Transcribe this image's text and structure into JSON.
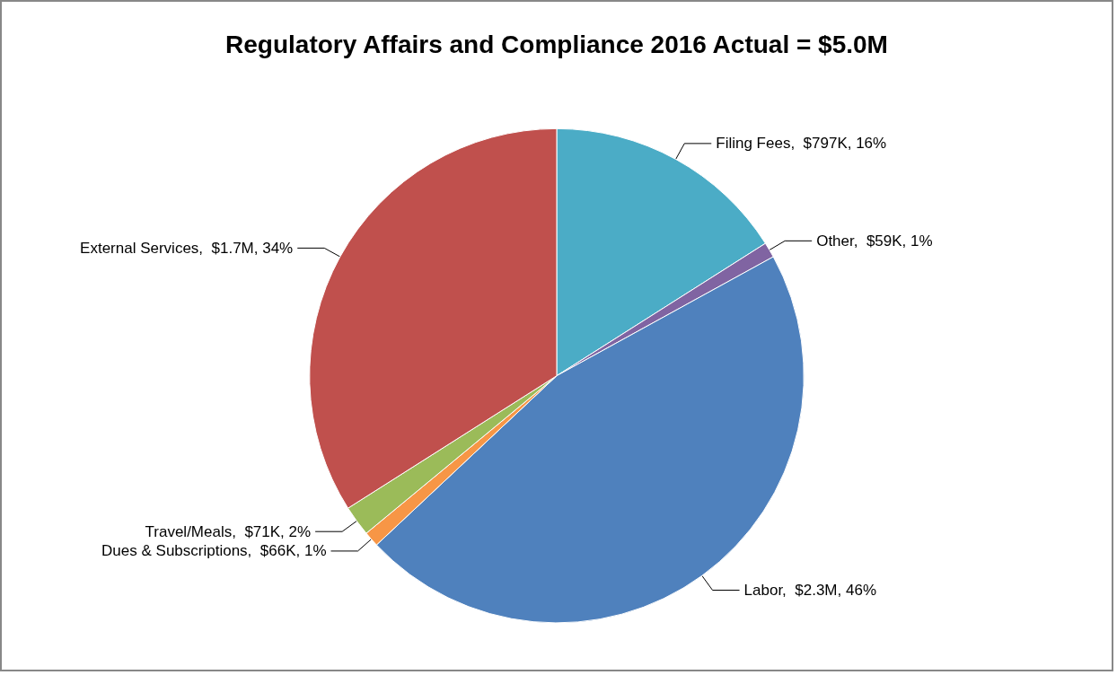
{
  "chart_data": {
    "type": "pie",
    "title": "Regulatory Affairs and Compliance 2016 Actual = $5.0M",
    "categories": [
      "Filing Fees",
      "Other",
      "Labor",
      "Dues & Subscriptions",
      "Travel/Meals",
      "External Services"
    ],
    "values": [
      16,
      1,
      46,
      1,
      2,
      34
    ],
    "value_labels": [
      "$797K, 16%",
      "$59K, 1%",
      "$2.3M, 46%",
      "$66K, 1%",
      "$71K, 2%",
      "$1.7M, 34%"
    ],
    "colors": [
      "#4bacc6",
      "#8064a2",
      "#4f81bd",
      "#f79646",
      "#9bbb59",
      "#c0504d"
    ],
    "legend": false
  }
}
